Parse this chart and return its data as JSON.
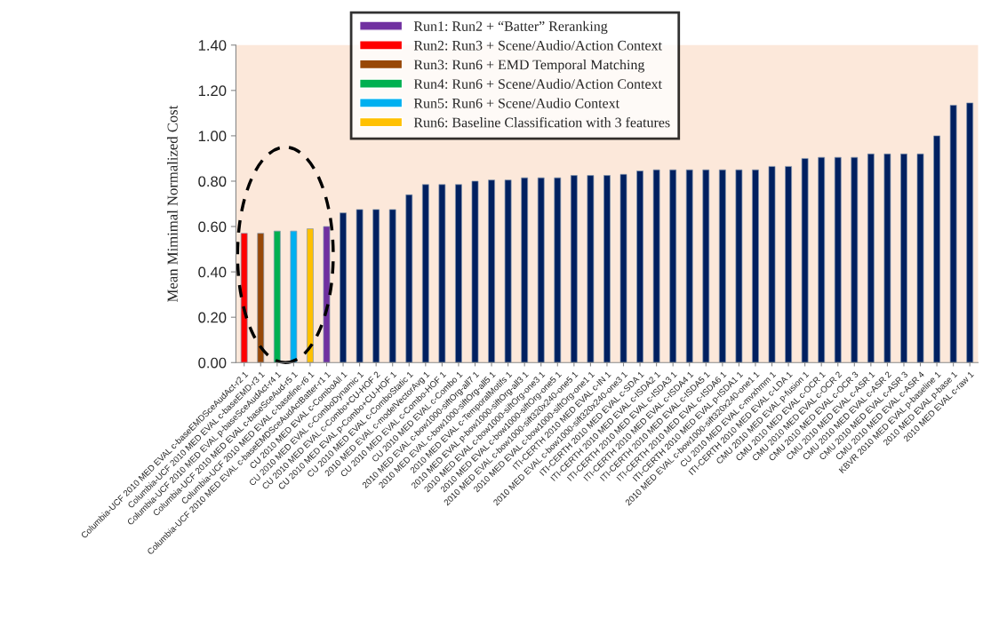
{
  "chart_data": {
    "type": "bar",
    "ylabel": "Mean Mimimal Normalized Cost",
    "categories": [
      "Columbia-UCF 2010 MED EVAL c-baseEMDSceAudAct-r2 1",
      "Columbia-UCF 2010 MED EVAL c-baseEMD-r3 1",
      "Columbia-UCF 2010 MED EVAL p-baseSceAudAct-r4 1",
      "Columbia-UCF 2010 MED EVAL c-baseSceAud-r5 1",
      "Columbia-UCF 2010 MED EVAL c-baseline-r6 1",
      "Columbia-UCF 2010 MED EVAL c-baseEMDSceAudActBatter-r1 1",
      "CU 2010 MED EVAL c-ComboAll 1",
      "CU 2010 MED EVAL c-ComboDynamic 1",
      "CU 2010 MED EVAL c-Combo+CU-HOF 2",
      "CU 2010 MED EVAL p-Combo+CU-HOF 1",
      "CU 2010 MED EVAL c-ComboStatic 1",
      "2010 MED EVAL c-modelVectorAvg 1",
      "CU 2010 MED EVAL c-Combo-HOF 1",
      "CU 2010 MED EVAL c-Combo 1",
      "2010 MED EVAL c-bow1000-siftOrg-all7 1",
      "2010 MED EVAL c-bow1000-siftOrg-all5 1",
      "2010 MED EVAL c-TemporalMotifs 1",
      "2010 MED EVAL p-bow1000-siftOrg-all3 1",
      "2010 MED EVAL c-bow1000-siftOrg-one3 1",
      "2010 MED EVAL c-bow1000-siftOrg-one5 1",
      "2010 MED EVAL c-bow1000-sift320x240-one5 1",
      "2010 MED EVAL c-bow1000-siftOrg-one1 1",
      "ITI-CERTH 2010 MED EVAL c-IN 1",
      "2010 MED EVAL c-bow1000-sift320x240-one3 1",
      "ITI-CERTH 2010 MED EVAL c-SDA 1",
      "ITI-CERTH 2010 MED EVAL c-ISDA2 1",
      "ITI-CERTH 2010 MED EVAL c-ISDA3 1",
      "ITI-CERTH 2010 MED EVAL c-ISDA4 1",
      "ITI-CERTH 2010 MED EVAL c-ISDA5 1",
      "ITI-CERTH 2010 MED EVAL c-ISDA6 1",
      "ITI-CERTH 2010 MED EVAL p-ISDA1 1",
      "2010 MED EVAL c-bow1000-sift320x240-one1 1",
      "CU 2010 MED EVAL c-mvxhmm 1",
      "ITI-CERTH 2010 MED EVAL c-LDA 1",
      "CMU 2010 MED EVAL p-fusion 1",
      "CMU 2010 MED EVAL c-OCR 1",
      "CMU 2010 MED EVAL c-OCR 2",
      "CMU 2010 MED EVAL c-OCR 3",
      "CMU 2010 MED EVAL c-ASR 1",
      "CMU 2010 MED EVAL c-ASR 2",
      "CMU 2010 MED EVAL c-ASR 3",
      "CMU 2010 MED EVAL c-ASR 4",
      "KBVR 2010 MED EVAL p-baseline 1",
      "2010 MED EVAL p-base 1",
      "2010 MED EVAL c-raw 1"
    ],
    "series": [
      {
        "name": "Run1: Run2 + “Batter” Reranking",
        "color": "#7030a0",
        "values": [
          null,
          null,
          null,
          null,
          null,
          0.6,
          null,
          null,
          null,
          null,
          null,
          null,
          null,
          null,
          null,
          null,
          null,
          null,
          null,
          null,
          null,
          null,
          null,
          null,
          null,
          null,
          null,
          null,
          null,
          null,
          null,
          null,
          null,
          null,
          null,
          null,
          null,
          null,
          null,
          null,
          null,
          null,
          null,
          null,
          null
        ]
      },
      {
        "name": "Run2: Run3 + Scene/Audio/Action Context",
        "color": "#ff0000",
        "values": [
          0.57,
          null,
          null,
          null,
          null,
          null,
          null,
          null,
          null,
          null,
          null,
          null,
          null,
          null,
          null,
          null,
          null,
          null,
          null,
          null,
          null,
          null,
          null,
          null,
          null,
          null,
          null,
          null,
          null,
          null,
          null,
          null,
          null,
          null,
          null,
          null,
          null,
          null,
          null,
          null,
          null,
          null,
          null,
          null,
          null
        ]
      },
      {
        "name": "Run3: Run6 + EMD Temporal Matching",
        "color": "#984807",
        "values": [
          null,
          0.57,
          null,
          null,
          null,
          null,
          null,
          null,
          null,
          null,
          null,
          null,
          null,
          null,
          null,
          null,
          null,
          null,
          null,
          null,
          null,
          null,
          null,
          null,
          null,
          null,
          null,
          null,
          null,
          null,
          null,
          null,
          null,
          null,
          null,
          null,
          null,
          null,
          null,
          null,
          null,
          null,
          null,
          null,
          null
        ]
      },
      {
        "name": "Run4: Run6 + Scene/Audio/Action Context",
        "color": "#00b050",
        "values": [
          null,
          null,
          0.58,
          null,
          null,
          null,
          null,
          null,
          null,
          null,
          null,
          null,
          null,
          null,
          null,
          null,
          null,
          null,
          null,
          null,
          null,
          null,
          null,
          null,
          null,
          null,
          null,
          null,
          null,
          null,
          null,
          null,
          null,
          null,
          null,
          null,
          null,
          null,
          null,
          null,
          null,
          null,
          null,
          null,
          null
        ]
      },
      {
        "name": "Run5: Run6 + Scene/Audio Context",
        "color": "#00b0f0",
        "values": [
          null,
          null,
          null,
          0.58,
          null,
          null,
          null,
          null,
          null,
          null,
          null,
          null,
          null,
          null,
          null,
          null,
          null,
          null,
          null,
          null,
          null,
          null,
          null,
          null,
          null,
          null,
          null,
          null,
          null,
          null,
          null,
          null,
          null,
          null,
          null,
          null,
          null,
          null,
          null,
          null,
          null,
          null,
          null,
          null,
          null
        ]
      },
      {
        "name": "Run6: Baseline Classification with 3 features",
        "color": "#ffc000",
        "values": [
          null,
          null,
          null,
          null,
          0.59,
          null,
          null,
          null,
          null,
          null,
          null,
          null,
          null,
          null,
          null,
          null,
          null,
          null,
          null,
          null,
          null,
          null,
          null,
          null,
          null,
          null,
          null,
          null,
          null,
          null,
          null,
          null,
          null,
          null,
          null,
          null,
          null,
          null,
          null,
          null,
          null,
          null,
          null,
          null,
          null
        ]
      },
      {
        "color": "#002060",
        "values": [
          null,
          null,
          null,
          null,
          null,
          null,
          0.66,
          0.675,
          0.675,
          0.675,
          0.74,
          0.785,
          0.785,
          0.785,
          0.8,
          0.805,
          0.805,
          0.815,
          0.815,
          0.815,
          0.825,
          0.825,
          0.825,
          0.83,
          0.845,
          0.85,
          0.85,
          0.85,
          0.85,
          0.85,
          0.85,
          0.85,
          0.865,
          0.865,
          0.9,
          0.905,
          0.905,
          0.905,
          0.92,
          0.92,
          0.92,
          0.92,
          1.0,
          1.135,
          1.145
        ]
      }
    ],
    "ylim": [
      0,
      1.4
    ],
    "yticks": [
      {
        "value": 0,
        "label": "0.00"
      },
      {
        "value": 0.2,
        "label": "0.20"
      },
      {
        "value": 0.4,
        "label": "0.40"
      },
      {
        "value": 0.6,
        "label": "0.60"
      },
      {
        "value": 0.8,
        "label": "0.80"
      },
      {
        "value": 1.0,
        "label": "1.00"
      },
      {
        "value": 1.2,
        "label": "1.20"
      },
      {
        "value": 1.4,
        "label": "1.40"
      }
    ],
    "grid": false,
    "legend": "top"
  }
}
